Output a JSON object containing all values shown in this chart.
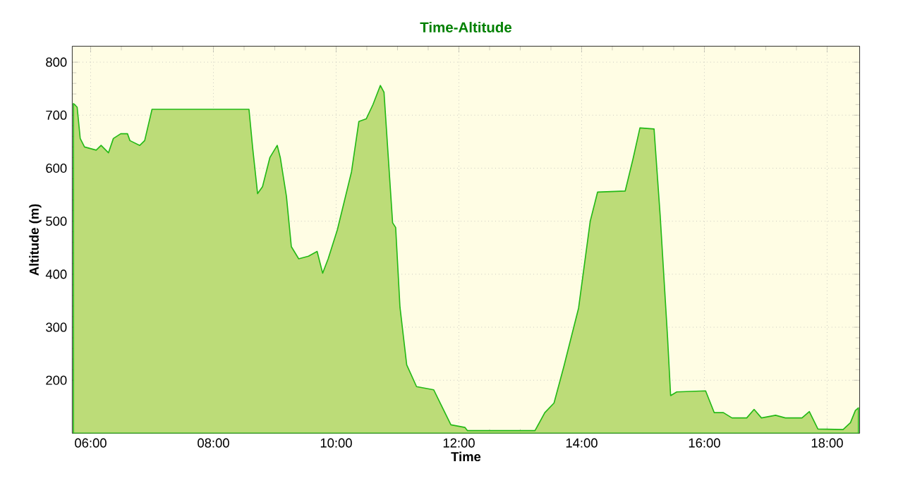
{
  "chart_data": {
    "type": "area",
    "title": "Time-Altitude",
    "xlabel": "Time",
    "ylabel": "Altitude (m)",
    "xlim": [
      5.7,
      18.53
    ],
    "ylim": [
      100,
      830
    ],
    "xticks": [
      {
        "value": 6,
        "label": "06:00"
      },
      {
        "value": 8,
        "label": "08:00"
      },
      {
        "value": 10,
        "label": "10:00"
      },
      {
        "value": 12,
        "label": "12:00"
      },
      {
        "value": 14,
        "label": "14:00"
      },
      {
        "value": 16,
        "label": "16:00"
      },
      {
        "value": 18,
        "label": "18:00"
      }
    ],
    "yticks": [
      200,
      300,
      400,
      500,
      600,
      700,
      800
    ],
    "grid": true,
    "marker": "none",
    "line_style": "solid",
    "series": [
      {
        "color": "#bcdc78",
        "x": [
          5.72,
          5.78,
          5.83,
          5.9,
          6.09,
          6.17,
          6.29,
          6.37,
          6.49,
          6.6,
          6.64,
          6.8,
          6.88,
          7.0,
          8.58,
          8.64,
          8.72,
          8.8,
          8.92,
          9.04,
          9.09,
          9.19,
          9.27,
          9.39,
          9.55,
          9.69,
          9.78,
          9.87,
          10.02,
          10.25,
          10.37,
          10.49,
          10.6,
          10.72,
          10.78,
          10.92,
          10.97,
          11.04,
          11.15,
          11.31,
          11.59,
          11.7,
          11.87,
          12.1,
          12.14,
          13.24,
          13.4,
          13.55,
          13.71,
          13.95,
          14.14,
          14.26,
          14.71,
          14.84,
          14.95,
          15.18,
          15.28,
          15.4,
          15.45,
          15.55,
          16.02,
          16.16,
          16.31,
          16.45,
          16.69,
          16.81,
          16.93,
          17.16,
          17.32,
          17.59,
          17.71,
          17.85,
          18.26,
          18.38,
          18.46,
          18.51
        ],
        "values": [
          722,
          715,
          656,
          640,
          634,
          643,
          629,
          656,
          665,
          665,
          652,
          643,
          652,
          711,
          711,
          638,
          552,
          565,
          620,
          643,
          620,
          547,
          452,
          429,
          434,
          443,
          402,
          429,
          484,
          593,
          688,
          693,
          720,
          756,
          743,
          497,
          488,
          338,
          229,
          188,
          182,
          156,
          116,
          111,
          105,
          105,
          139,
          157,
          226,
          336,
          500,
          555,
          557,
          619,
          676,
          674,
          510,
          281,
          171,
          178,
          180,
          139,
          139,
          129,
          129,
          145,
          129,
          134,
          129,
          129,
          141,
          108,
          107,
          120,
          143,
          148
        ]
      }
    ]
  }
}
